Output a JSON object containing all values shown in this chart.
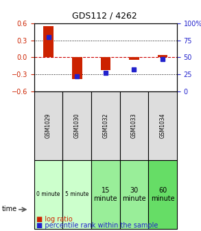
{
  "title": "GDS112 / 4262",
  "samples": [
    "GSM1029",
    "GSM1030",
    "GSM1032",
    "GSM1033",
    "GSM1034"
  ],
  "time_labels": [
    "0 minute",
    "5 minute",
    "15\nminute",
    "30\nminute",
    "60\nminute"
  ],
  "time_colors": [
    "#ccffcc",
    "#ccffcc",
    "#99ee99",
    "#99ee99",
    "#66dd66"
  ],
  "log_ratios": [
    0.55,
    -0.38,
    -0.22,
    -0.04,
    0.04
  ],
  "percentile_ranks": [
    80,
    22,
    27,
    32,
    47
  ],
  "ylim_left": [
    -0.6,
    0.6
  ],
  "ylim_right": [
    0,
    100
  ],
  "yticks_left": [
    -0.6,
    -0.3,
    0.0,
    0.3,
    0.6
  ],
  "yticks_right": [
    0,
    25,
    50,
    75,
    100
  ],
  "bar_color": "#cc2200",
  "dot_color": "#2222cc",
  "grid_color": "#000000",
  "zero_line_color": "#cc0000",
  "bg_color": "#ffffff",
  "plot_bg": "#ffffff",
  "sample_bg": "#dddddd",
  "left_ylabel_color": "#cc2200",
  "right_ylabel_color": "#2222cc"
}
